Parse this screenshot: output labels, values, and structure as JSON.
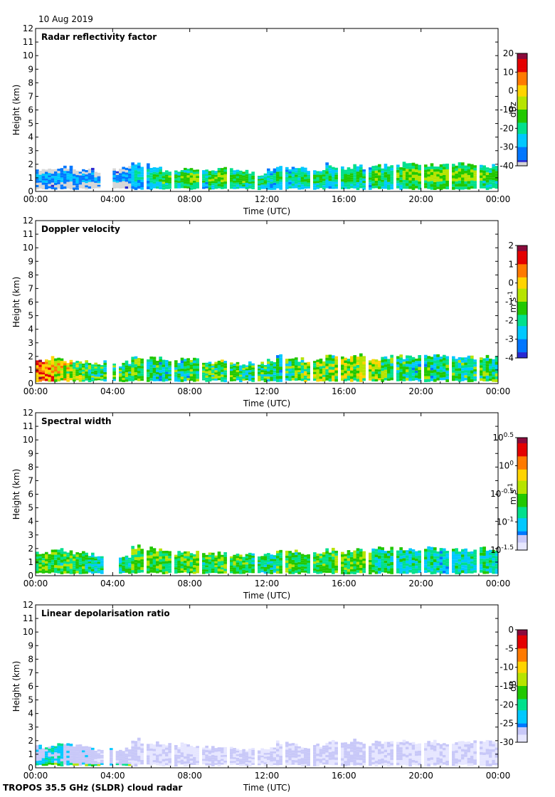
{
  "date": "10 Aug 2019",
  "footer": "TROPOS 35.5 GHz (SLDR) cloud radar",
  "x_tick_labels": [
    "00:00",
    "04:00",
    "08:00",
    "12:00",
    "16:00",
    "20:00",
    "00:00"
  ],
  "y_tick_labels": [
    "0",
    "1",
    "2",
    "3",
    "4",
    "5",
    "6",
    "7",
    "8",
    "9",
    "10",
    "11",
    "12"
  ],
  "xlabel": "Time (UTC)",
  "ylabel": "Height (km)",
  "colors": {
    "colormap": [
      "#2a2ad2",
      "#0077ff",
      "#00c8ff",
      "#00e08c",
      "#21c800",
      "#b6e400",
      "#ffd400",
      "#ff7a00",
      "#e40000",
      "#8a0a3c"
    ],
    "below_range": "#d6d6d6",
    "low_end": "#c8c8f8",
    "lowest_end": "#e6e6ff"
  },
  "chart_data": [
    {
      "type": "heatmap",
      "title": "Radar reflectivity factor",
      "xlabel": "Time (UTC)",
      "ylabel": "Height (km)",
      "xlim": [
        0,
        24
      ],
      "ylim": [
        0,
        12
      ],
      "colorbar": {
        "label": "dBz",
        "range": [
          -40,
          20
        ],
        "ticks": [
          "20",
          "10",
          "0",
          "-10",
          "-20",
          "-30",
          "-40"
        ]
      },
      "cloud_top_km": [
        1.6,
        1.7,
        1.7,
        1.8,
        1.6,
        1.7,
        1.5,
        1.7,
        1.6,
        1.8,
        2.1,
        2.0,
        1.9,
        1.6,
        1.6,
        1.7,
        1.8,
        1.6,
        1.5,
        1.7,
        1.6,
        1.5,
        1.4,
        1.3,
        1.6,
        1.9,
        1.8,
        1.7,
        1.7,
        1.6,
        2.0,
        1.9,
        1.8,
        2.0,
        1.8,
        1.9,
        1.9,
        2.0,
        2.1,
        2.0,
        2.0,
        2.0,
        1.9,
        1.9,
        2.0,
        1.9,
        1.9,
        1.9
      ],
      "mean_dbz": [
        -36,
        -33,
        -34,
        -35,
        -34,
        -35,
        -38,
        -36,
        -37,
        -35,
        -28,
        -29,
        -22,
        -18,
        -20,
        -16,
        -14,
        -24,
        -17,
        -15,
        -19,
        -17,
        -21,
        -20,
        -26,
        -22,
        -24,
        -23,
        -21,
        -19,
        -24,
        -22,
        -18,
        -20,
        -23,
        -16,
        -21,
        -17,
        -15,
        -14,
        -13,
        -12,
        -14,
        -13,
        -15,
        -14,
        -17,
        -19
      ]
    },
    {
      "type": "heatmap",
      "title": "Doppler velocity",
      "xlabel": "Time (UTC)",
      "ylabel": "Height (km)",
      "xlim": [
        0,
        24
      ],
      "ylim": [
        0,
        12
      ],
      "colorbar": {
        "label": "m s",
        "label_exponent": "-1",
        "range": [
          -4,
          2
        ],
        "ticks": [
          "2",
          "1",
          "0",
          "-1",
          "-2",
          "-3",
          "-4"
        ]
      },
      "cloud_top_km": [
        1.8,
        1.9,
        1.8,
        1.7,
        1.6,
        1.6,
        1.5,
        1.6,
        1.4,
        1.6,
        2.1,
        2.0,
        1.9,
        1.8,
        1.7,
        1.8,
        1.8,
        1.7,
        1.6,
        1.7,
        1.6,
        1.5,
        1.6,
        1.5,
        1.7,
        2.0,
        1.8,
        1.8,
        1.7,
        1.8,
        2.0,
        1.9,
        1.9,
        2.1,
        1.9,
        1.9,
        2.0,
        2.0,
        2.0,
        2.0,
        2.0,
        2.0,
        2.0,
        2.0,
        2.0,
        2.0,
        2.0,
        2.0
      ],
      "mean_velocity": [
        0.8,
        0.3,
        -0.2,
        -0.6,
        -1.2,
        -1.5,
        -1.8,
        -1.6,
        -1.7,
        -1.4,
        -1.6,
        -1.8,
        -2.0,
        -2.1,
        -1.9,
        -2.0,
        -1.5,
        -1.2,
        -1.6,
        -1.4,
        -1.7,
        -1.9,
        -2.0,
        -1.8,
        -1.9,
        -2.0,
        -1.6,
        -1.4,
        -1.2,
        -1.0,
        -1.3,
        -1.1,
        -0.9,
        -0.8,
        -0.7,
        -1.0,
        -1.5,
        -1.8,
        -1.9,
        -2.0,
        -2.0,
        -2.1,
        -2.0,
        -1.9,
        -1.9,
        -1.8,
        -1.7,
        -1.8
      ]
    },
    {
      "type": "heatmap",
      "title": "Spectral width",
      "xlabel": "Time (UTC)",
      "ylabel": "Height (km)",
      "xlim": [
        0,
        24
      ],
      "ylim": [
        0,
        12
      ],
      "colorbar": {
        "label": "m s",
        "label_exponent": "-1",
        "scale": "log",
        "range_log10": [
          -1.5,
          0.5
        ],
        "ticks": [
          "10^0.5",
          "10^0",
          "10^-0.5",
          "10^-1",
          "10^-1.5"
        ]
      },
      "cloud_top_km": [
        1.7,
        1.8,
        1.9,
        1.8,
        1.7,
        1.6,
        1.5,
        1.6,
        1.5,
        1.4,
        2.2,
        2.1,
        2.0,
        1.8,
        1.7,
        1.8,
        1.7,
        1.6,
        1.6,
        1.7,
        1.6,
        1.5,
        1.6,
        1.5,
        1.6,
        2.0,
        1.9,
        1.8,
        1.7,
        1.8,
        1.9,
        1.9,
        1.8,
        2.0,
        1.9,
        2.0,
        2.0,
        2.0,
        2.1,
        2.0,
        2.0,
        2.0,
        2.0,
        2.0,
        2.0,
        2.0,
        2.0,
        1.9
      ],
      "mean_width_log10": [
        -0.7,
        -0.6,
        -0.7,
        -0.6,
        -0.7,
        -0.8,
        -0.9,
        -0.8,
        -0.9,
        -0.8,
        -0.6,
        -0.6,
        -0.6,
        -0.7,
        -0.7,
        -0.6,
        -0.6,
        -0.7,
        -0.7,
        -0.6,
        -0.7,
        -0.7,
        -0.8,
        -0.8,
        -0.8,
        -0.7,
        -0.6,
        -0.7,
        -0.7,
        -0.6,
        -0.6,
        -0.6,
        -0.7,
        -0.6,
        -0.6,
        -0.8,
        -0.8,
        -0.9,
        -0.9,
        -0.9,
        -0.9,
        -0.9,
        -1.0,
        -0.9,
        -0.9,
        -0.9,
        -0.8,
        -0.9
      ]
    },
    {
      "type": "heatmap",
      "title": "Linear depolarisation ratio",
      "xlabel": "Time (UTC)",
      "ylabel": "Height (km)",
      "xlim": [
        0,
        24
      ],
      "ylim": [
        0,
        12
      ],
      "colorbar": {
        "label": "dB",
        "range": [
          -30,
          0
        ],
        "ticks": [
          "0",
          "-5",
          "-10",
          "-15",
          "-20",
          "-25",
          "-30"
        ]
      },
      "cloud_top_km": [
        1.6,
        1.7,
        1.8,
        1.7,
        1.6,
        1.5,
        1.4,
        1.5,
        1.3,
        1.4,
        2.1,
        2.0,
        1.9,
        1.7,
        1.6,
        1.8,
        1.7,
        1.6,
        1.5,
        1.6,
        1.5,
        1.4,
        1.5,
        1.4,
        1.5,
        1.9,
        1.8,
        1.7,
        1.6,
        1.7,
        1.9,
        1.8,
        1.8,
        2.0,
        1.8,
        1.9,
        1.9,
        2.0,
        2.0,
        1.9,
        1.9,
        2.0,
        1.9,
        1.9,
        1.9,
        1.9,
        1.9,
        1.9
      ],
      "mean_ldr_db": [
        -24,
        -22,
        -23,
        -24,
        -25,
        -25,
        -26,
        -25,
        -26,
        -26,
        -27,
        -27,
        -28,
        -28,
        -27,
        -28,
        -28,
        -27,
        -27,
        -28,
        -27,
        -27,
        -28,
        -28,
        -28,
        -27,
        -27,
        -27,
        -26,
        -27,
        -27,
        -27,
        -26,
        -26,
        -26,
        -27,
        -27,
        -27,
        -28,
        -28,
        -28,
        -28,
        -28,
        -28,
        -28,
        -28,
        -28,
        -28
      ]
    }
  ]
}
